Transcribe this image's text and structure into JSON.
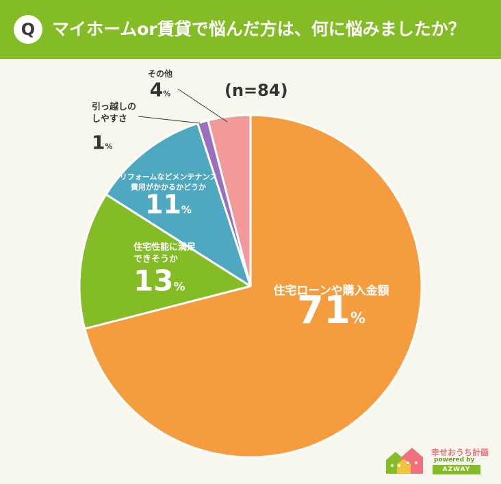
{
  "header": {
    "badge": "Q",
    "question": "マイホームor賃貸で悩んだ方は、何に悩みましたか？"
  },
  "sample_size": "(n=84)",
  "chart_data": {
    "type": "pie",
    "title": "",
    "slices": [
      {
        "label_lines": [
          "住宅ローンや購入金額"
        ],
        "value": 71,
        "color": "#f59d3e"
      },
      {
        "label_lines": [
          "住宅性能に満足",
          "できそうか"
        ],
        "value": 13,
        "color": "#84bc25"
      },
      {
        "label_lines": [
          "リフォームなどメンテナンス",
          "費用がかかるかどうか"
        ],
        "value": 11,
        "color": "#4ea8c0"
      },
      {
        "label_lines": [
          "引っ越しの",
          "しやすさ"
        ],
        "value": 1,
        "color": "#9b6fbf"
      },
      {
        "label_lines": [
          "その他"
        ],
        "value": 4,
        "color": "#f19a99"
      }
    ],
    "value_suffix": "%"
  },
  "logo": {
    "title": "幸せおうち計画",
    "sub": "powered by",
    "brand": "AZWAY",
    "colors": [
      "#84bc25",
      "#ef6f7a",
      "#f5c33b"
    ]
  }
}
